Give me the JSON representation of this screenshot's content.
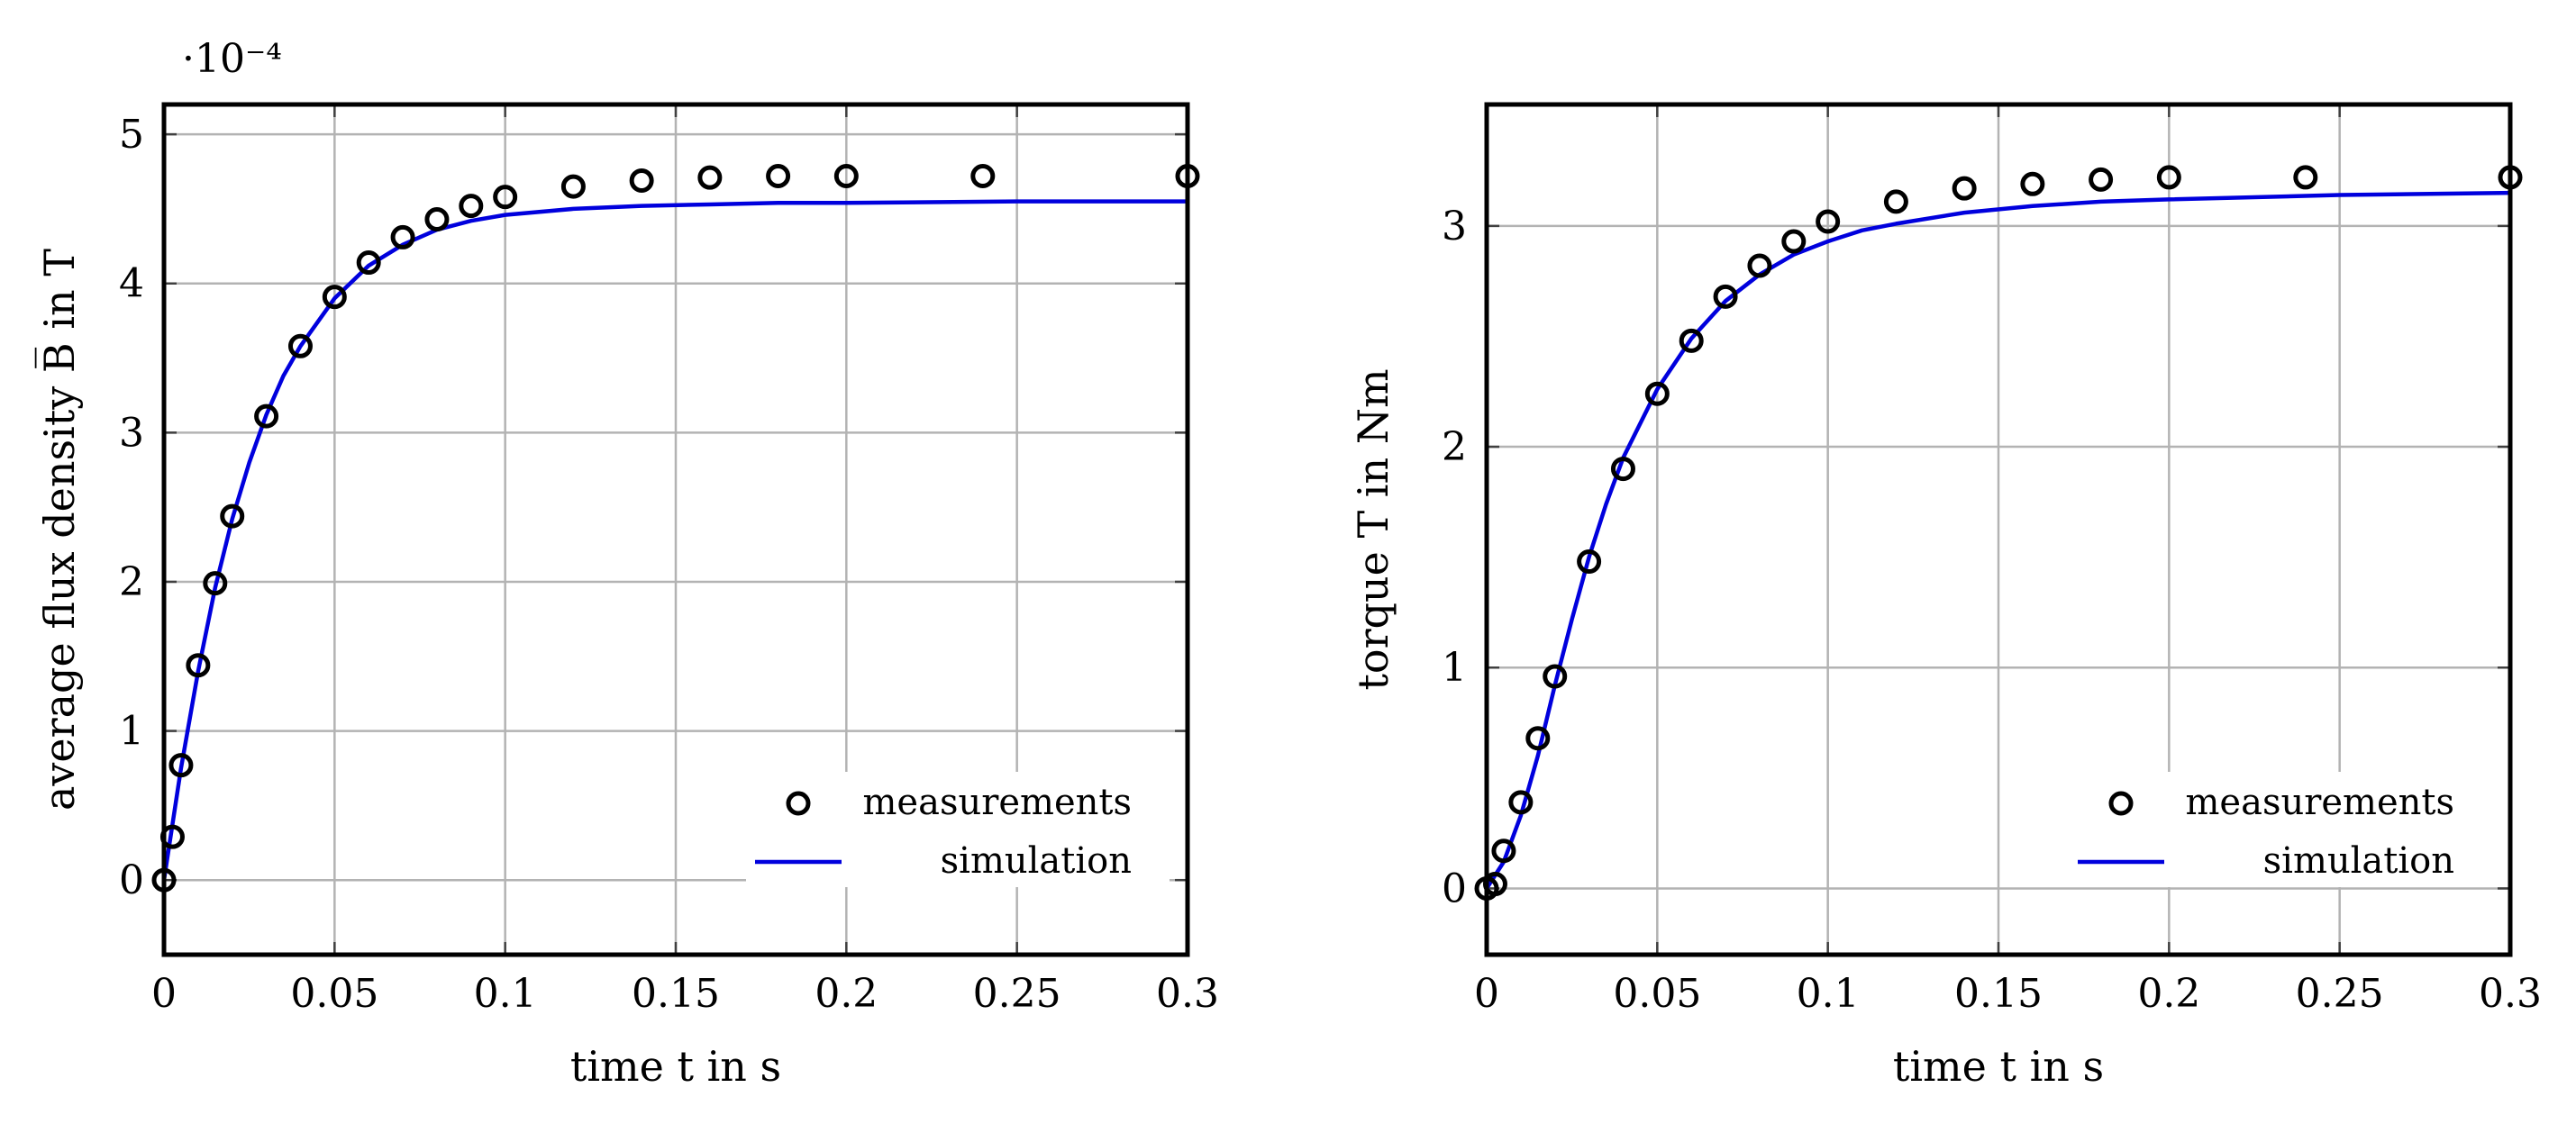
{
  "chart_data": [
    {
      "type": "scatter",
      "title": "",
      "xlabel": "time t in s",
      "ylabel": "average flux density B̅ in T",
      "y_scale_label": "·10⁻⁴",
      "xlim": [
        0,
        0.3
      ],
      "ylim": [
        -0.5,
        5.2
      ],
      "xticks": [
        0,
        0.05,
        0.1,
        0.15,
        0.2,
        0.25,
        0.3
      ],
      "xtick_labels": [
        "0",
        "0.05",
        "0.1",
        "0.15",
        "0.2",
        "0.25",
        "0.3"
      ],
      "yticks": [
        0,
        1,
        2,
        3,
        4,
        5
      ],
      "ytick_labels": [
        "0",
        "1",
        "2",
        "3",
        "4",
        "5"
      ],
      "grid": true,
      "legend_position": "bottom-right",
      "series": [
        {
          "name": "measurements",
          "kind": "markers",
          "color": "#000000",
          "x": [
            0,
            0.0025,
            0.005,
            0.01,
            0.015,
            0.02,
            0.03,
            0.04,
            0.05,
            0.06,
            0.07,
            0.08,
            0.09,
            0.1,
            0.12,
            0.14,
            0.16,
            0.18,
            0.2,
            0.24,
            0.3
          ],
          "y": [
            0,
            0.29,
            0.77,
            1.44,
            1.99,
            2.44,
            3.11,
            3.58,
            3.91,
            4.14,
            4.31,
            4.43,
            4.52,
            4.58,
            4.65,
            4.69,
            4.71,
            4.72,
            4.72,
            4.72,
            4.72
          ]
        },
        {
          "name": "simulation",
          "kind": "line",
          "color": "#0000dd",
          "x": [
            0,
            0.005,
            0.01,
            0.015,
            0.02,
            0.025,
            0.03,
            0.035,
            0.04,
            0.05,
            0.06,
            0.07,
            0.08,
            0.09,
            0.1,
            0.12,
            0.14,
            0.16,
            0.18,
            0.2,
            0.25,
            0.3
          ],
          "y": [
            0,
            0.75,
            1.4,
            1.96,
            2.42,
            2.8,
            3.12,
            3.38,
            3.58,
            3.9,
            4.12,
            4.26,
            4.36,
            4.42,
            4.46,
            4.5,
            4.52,
            4.53,
            4.54,
            4.54,
            4.55,
            4.55
          ]
        }
      ]
    },
    {
      "type": "scatter",
      "title": "",
      "xlabel": "time t in s",
      "ylabel": "torque T in Nm",
      "xlim": [
        0,
        0.3
      ],
      "ylim": [
        -0.3,
        3.55
      ],
      "xticks": [
        0,
        0.05,
        0.1,
        0.15,
        0.2,
        0.25,
        0.3
      ],
      "xtick_labels": [
        "0",
        "0.05",
        "0.1",
        "0.15",
        "0.2",
        "0.25",
        "0.3"
      ],
      "yticks": [
        0,
        1,
        2,
        3
      ],
      "ytick_labels": [
        "0",
        "1",
        "2",
        "3"
      ],
      "grid": true,
      "legend_position": "bottom-right",
      "series": [
        {
          "name": "measurements",
          "kind": "markers",
          "color": "#000000",
          "x": [
            0,
            0.0025,
            0.005,
            0.01,
            0.015,
            0.02,
            0.03,
            0.04,
            0.05,
            0.06,
            0.07,
            0.08,
            0.09,
            0.1,
            0.12,
            0.14,
            0.16,
            0.18,
            0.2,
            0.24,
            0.3
          ],
          "y": [
            0,
            0.02,
            0.17,
            0.39,
            0.68,
            0.96,
            1.48,
            1.9,
            2.24,
            2.48,
            2.68,
            2.82,
            2.93,
            3.02,
            3.11,
            3.17,
            3.19,
            3.21,
            3.22,
            3.22,
            3.22
          ]
        },
        {
          "name": "simulation",
          "kind": "line",
          "color": "#0000dd",
          "x": [
            0,
            0.005,
            0.01,
            0.015,
            0.02,
            0.025,
            0.03,
            0.035,
            0.04,
            0.05,
            0.06,
            0.07,
            0.08,
            0.09,
            0.1,
            0.11,
            0.12,
            0.14,
            0.16,
            0.18,
            0.2,
            0.25,
            0.3
          ],
          "y": [
            0,
            0.12,
            0.33,
            0.6,
            0.92,
            1.22,
            1.5,
            1.74,
            1.95,
            2.26,
            2.49,
            2.66,
            2.78,
            2.87,
            2.93,
            2.98,
            3.01,
            3.06,
            3.09,
            3.11,
            3.12,
            3.14,
            3.15
          ]
        }
      ]
    }
  ]
}
